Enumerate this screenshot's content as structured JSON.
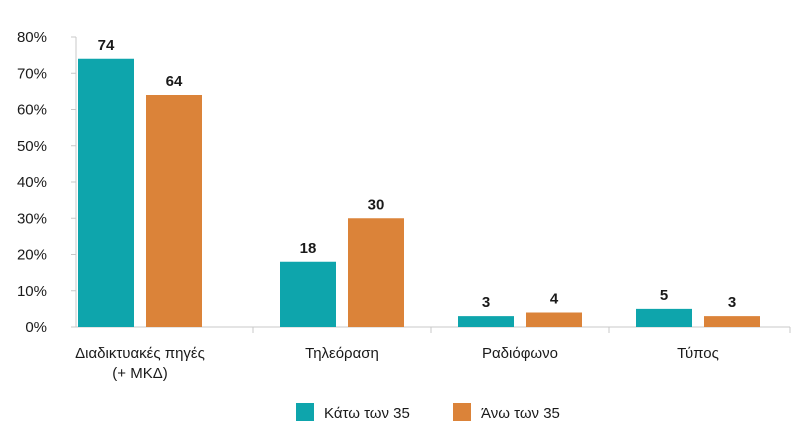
{
  "chart_data": {
    "type": "bar",
    "categories": [
      [
        "Διαδικτυακές πηγές",
        "(+ ΜΚΔ)"
      ],
      [
        "Τηλεόραση"
      ],
      [
        "Ραδιόφωνο"
      ],
      [
        "Τύπος"
      ]
    ],
    "series": [
      {
        "name": "Κάτω των 35",
        "values": [
          74,
          18,
          3,
          5
        ],
        "color": "#0ea5ac"
      },
      {
        "name": "Άνω των 35",
        "values": [
          64,
          30,
          4,
          3
        ],
        "color": "#db8339"
      }
    ],
    "y_ticks": [
      "0%",
      "10%",
      "20%",
      "30%",
      "40%",
      "50%",
      "60%",
      "70%",
      "80%"
    ],
    "ylim": [
      0,
      80
    ],
    "grid": false,
    "legend_position": "bottom",
    "axis_color": "#c8c8c8"
  }
}
